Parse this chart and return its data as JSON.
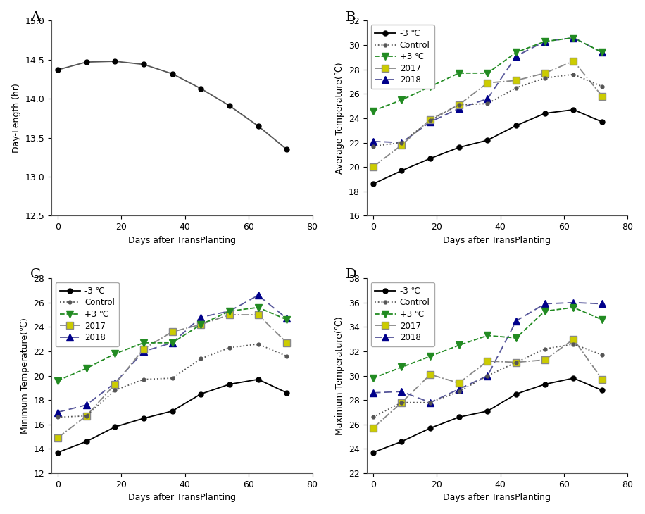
{
  "panel_A": {
    "x": [
      0,
      9,
      18,
      27,
      36,
      45,
      54,
      63,
      72
    ],
    "y": [
      14.37,
      14.47,
      14.48,
      14.44,
      14.32,
      14.13,
      13.91,
      13.65,
      13.35
    ],
    "xlabel": "Days after TransPlanting",
    "ylabel": "Day-Length (hr)",
    "xlim": [
      -2,
      80
    ],
    "ylim": [
      12.5,
      15.0
    ],
    "yticks": [
      12.5,
      13.0,
      13.5,
      14.0,
      14.5,
      15.0
    ],
    "xticks": [
      0,
      20,
      40,
      60,
      80
    ]
  },
  "panel_B": {
    "minus3": {
      "x": [
        0,
        9,
        18,
        27,
        36,
        45,
        54,
        63,
        72
      ],
      "y": [
        18.6,
        19.7,
        20.7,
        21.6,
        22.2,
        23.4,
        24.4,
        24.7,
        23.7
      ]
    },
    "control": {
      "x": [
        0,
        9,
        18,
        27,
        36,
        45,
        54,
        63,
        72
      ],
      "y": [
        21.7,
        22.0,
        23.8,
        25.1,
        25.2,
        26.5,
        27.3,
        27.6,
        26.6
      ]
    },
    "plus3": {
      "x": [
        0,
        9,
        18,
        27,
        36,
        45,
        54,
        63,
        72
      ],
      "y": [
        24.6,
        25.5,
        26.6,
        27.7,
        27.7,
        29.4,
        30.3,
        30.6,
        29.4
      ]
    },
    "y2017": {
      "x": [
        0,
        9,
        18,
        27,
        36,
        45,
        54,
        63,
        72
      ],
      "y": [
        20.0,
        21.8,
        23.9,
        25.1,
        26.9,
        27.1,
        27.7,
        28.7,
        25.8
      ]
    },
    "y2018": {
      "x": [
        0,
        9,
        18,
        27,
        36,
        45,
        54,
        63,
        72
      ],
      "y": [
        22.1,
        22.0,
        23.7,
        24.8,
        25.6,
        29.1,
        30.3,
        30.6,
        29.4
      ]
    },
    "xlabel": "Days after TransPlanting",
    "ylabel": "Average Temperature(℃)",
    "xlim": [
      -2,
      80
    ],
    "ylim": [
      16,
      32
    ],
    "yticks": [
      16,
      18,
      20,
      22,
      24,
      26,
      28,
      30,
      32
    ],
    "xticks": [
      0,
      20,
      40,
      60,
      80
    ]
  },
  "panel_C": {
    "minus3": {
      "x": [
        0,
        9,
        18,
        27,
        36,
        45,
        54,
        63,
        72
      ],
      "y": [
        13.7,
        14.6,
        15.8,
        16.5,
        17.1,
        18.5,
        19.3,
        19.7,
        18.6
      ]
    },
    "control": {
      "x": [
        0,
        9,
        18,
        27,
        36,
        45,
        54,
        63,
        72
      ],
      "y": [
        16.6,
        16.7,
        18.8,
        19.7,
        19.8,
        21.4,
        22.3,
        22.6,
        21.6
      ]
    },
    "plus3": {
      "x": [
        0,
        9,
        18,
        27,
        36,
        45,
        54,
        63,
        72
      ],
      "y": [
        19.6,
        20.6,
        21.8,
        22.7,
        22.7,
        24.2,
        25.3,
        25.6,
        24.6
      ]
    },
    "y2017": {
      "x": [
        0,
        9,
        18,
        27,
        36,
        45,
        54,
        63,
        72
      ],
      "y": [
        14.9,
        16.7,
        19.3,
        22.2,
        23.6,
        24.2,
        25.0,
        25.0,
        22.7
      ]
    },
    "y2018": {
      "x": [
        0,
        9,
        18,
        27,
        36,
        45,
        54,
        63,
        72
      ],
      "y": [
        17.0,
        17.6,
        19.4,
        22.0,
        22.7,
        24.8,
        25.3,
        26.6,
        24.7
      ]
    },
    "xlabel": "Days after TransPlanting",
    "ylabel": "Minimum Temperature(℃)",
    "xlim": [
      -2,
      80
    ],
    "ylim": [
      12,
      28
    ],
    "yticks": [
      12,
      14,
      16,
      18,
      20,
      22,
      24,
      26,
      28
    ],
    "xticks": [
      0,
      20,
      40,
      60,
      80
    ]
  },
  "panel_D": {
    "minus3": {
      "x": [
        0,
        9,
        18,
        27,
        36,
        45,
        54,
        63,
        72
      ],
      "y": [
        23.7,
        24.6,
        25.7,
        26.6,
        27.1,
        28.5,
        29.3,
        29.8,
        28.8
      ]
    },
    "control": {
      "x": [
        0,
        9,
        18,
        27,
        36,
        45,
        54,
        63,
        72
      ],
      "y": [
        26.6,
        27.8,
        27.8,
        28.7,
        30.0,
        31.1,
        32.2,
        32.6,
        31.7
      ]
    },
    "plus3": {
      "x": [
        0,
        9,
        18,
        27,
        36,
        45,
        54,
        63,
        72
      ],
      "y": [
        29.8,
        30.7,
        31.6,
        32.5,
        33.3,
        33.1,
        35.3,
        35.6,
        34.6
      ]
    },
    "y2017": {
      "x": [
        0,
        9,
        18,
        27,
        36,
        45,
        54,
        63,
        72
      ],
      "y": [
        25.7,
        27.8,
        30.1,
        29.4,
        31.2,
        31.1,
        31.3,
        33.0,
        29.7
      ]
    },
    "y2018": {
      "x": [
        0,
        9,
        18,
        27,
        36,
        45,
        54,
        63,
        72
      ],
      "y": [
        28.6,
        28.7,
        27.8,
        28.9,
        30.0,
        34.5,
        35.9,
        36.0,
        35.9
      ]
    },
    "xlabel": "Days after TransPlanting",
    "ylabel": "Maximum Temperature(℃)",
    "xlim": [
      -2,
      80
    ],
    "ylim": [
      22,
      38
    ],
    "yticks": [
      22,
      24,
      26,
      28,
      30,
      32,
      34,
      36,
      38
    ],
    "xticks": [
      0,
      20,
      40,
      60,
      80
    ]
  },
  "legend_labels": [
    "-3 ℃",
    "Control",
    "+3 ℃",
    "2017",
    "2018"
  ],
  "colors": {
    "minus3": "#000000",
    "control": "#555555",
    "plus3": "#228B22",
    "y2017": "#cccc00",
    "y2018": "#00008B"
  }
}
